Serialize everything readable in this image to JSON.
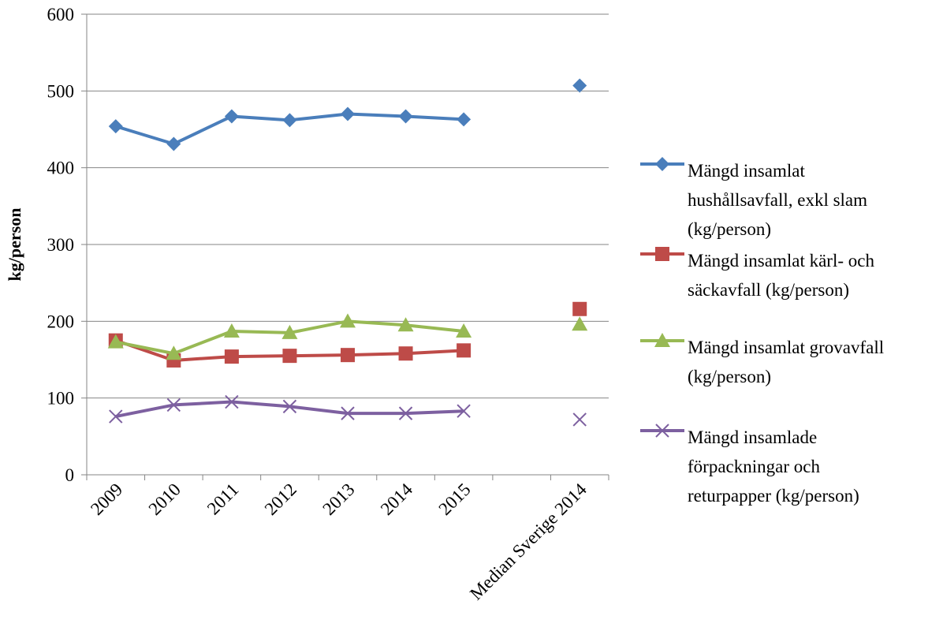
{
  "chart_data": {
    "type": "line",
    "title": "",
    "xlabel": "",
    "ylabel": "kg/person",
    "ylim": [
      0,
      600
    ],
    "yticks": [
      0,
      100,
      200,
      300,
      400,
      500,
      600
    ],
    "grid": true,
    "legend_position": "right",
    "categories": [
      "2009",
      "2010",
      "2011",
      "2012",
      "2013",
      "2014",
      "2015",
      "",
      "Median Sverige 2014"
    ],
    "series": [
      {
        "name": "Mängd insamlat hushållsavfall, exkl slam (kg/person)",
        "legend_lines": [
          "Mängd insamlat",
          "hushållsavfall, exkl slam",
          "(kg/person)"
        ],
        "color": "#4a7ebb",
        "marker": "diamond",
        "values": [
          454,
          431,
          467,
          462,
          470,
          467,
          463,
          null,
          507
        ]
      },
      {
        "name": "Mängd insamlat kärl- och säckavfall (kg/person)",
        "legend_lines": [
          "Mängd insamlat kärl- och",
          "säckavfall (kg/person)"
        ],
        "color": "#be4b48",
        "marker": "square",
        "values": [
          175,
          149,
          154,
          155,
          156,
          158,
          162,
          null,
          216
        ]
      },
      {
        "name": "Mängd insamlat grovavfall (kg/person)",
        "legend_lines": [
          "Mängd insamlat grovavfall",
          "(kg/person)"
        ],
        "color": "#98b954",
        "marker": "triangle",
        "values": [
          173,
          158,
          187,
          185,
          200,
          195,
          187,
          null,
          196
        ]
      },
      {
        "name": "Mängd insamlade förpackningar och returpapper (kg/person)",
        "legend_lines": [
          "Mängd insamlade",
          "förpackningar och",
          "returpapper (kg/person)"
        ],
        "color": "#7d60a0",
        "marker": "x",
        "values": [
          76,
          91,
          95,
          89,
          80,
          80,
          83,
          null,
          72
        ]
      }
    ]
  }
}
